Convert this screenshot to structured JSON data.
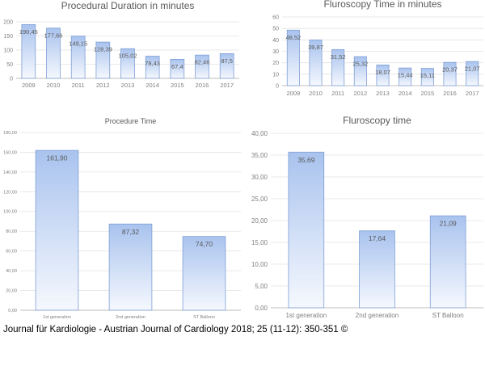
{
  "colors": {
    "bar_top": "#a9c3ee",
    "bar_bottom": "#f5f8fe",
    "bar_stroke": "#7f9fd6",
    "grid": "#e3e3e3",
    "axis": "#bfbfbf",
    "text": "#595959"
  },
  "footer": {
    "citation": "Journal für Kardiologie - Austrian Journal of Cardiology 2018; 25 (11-12):  350-351 ©"
  },
  "chart_data": [
    {
      "type": "bar",
      "title": "Procedural Duration in minutes",
      "categories": [
        "2009",
        "2010",
        "2011",
        "2012",
        "2013",
        "2014",
        "2015",
        "2016",
        "2017"
      ],
      "values": [
        190.45,
        177.66,
        149.15,
        128.39,
        105.02,
        78.43,
        67.4,
        82.46,
        87.5
      ],
      "value_labels": [
        "190,45",
        "177,66",
        "149,15",
        "128,39",
        "105,02",
        "78,43",
        "67,4",
        "82,46",
        "87,5"
      ],
      "yticks": [
        "0",
        "50",
        "100",
        "150",
        "200"
      ],
      "ylim": [
        0,
        200
      ],
      "grid": true
    },
    {
      "type": "bar",
      "title": "Fluroscopy Time in minutes",
      "categories": [
        "2009",
        "2010",
        "2011",
        "2012",
        "2013",
        "2014",
        "2015",
        "2016",
        "2017"
      ],
      "values": [
        48.52,
        39.87,
        31.52,
        25.32,
        18.07,
        15.44,
        15.11,
        20.37,
        21.07
      ],
      "value_labels": [
        "48,52",
        "39,87",
        "31,52",
        "25,32",
        "18,07",
        "15,44",
        "15,11",
        "20,37",
        "21,07"
      ],
      "yticks": [
        "0",
        "10",
        "20",
        "30",
        "40",
        "50",
        "60"
      ],
      "ylim": [
        0,
        60
      ],
      "grid": true
    },
    {
      "type": "bar",
      "title": "Procedure Time",
      "categories": [
        "1st generation",
        "2nd generation",
        "ST Balloon"
      ],
      "values": [
        161.9,
        87.32,
        74.7
      ],
      "value_labels": [
        "161,90",
        "87,32",
        "74,70"
      ],
      "yticks": [
        "0,00",
        "20,00",
        "40,00",
        "60,00",
        "80,00",
        "100,00",
        "120,00",
        "140,00",
        "160,00",
        "180,00"
      ],
      "ylim": [
        0,
        180
      ],
      "grid": true
    },
    {
      "type": "bar",
      "title": "Fluroscopy time",
      "categories": [
        "1st generation",
        "2nd generation",
        "ST Balloon"
      ],
      "values": [
        35.69,
        17.64,
        21.09
      ],
      "value_labels": [
        "35,69",
        "17,64",
        "21,09"
      ],
      "yticks": [
        "0,00",
        "5,00",
        "10,00",
        "15,00",
        "20,00",
        "25,00",
        "30,00",
        "35,00",
        "40,00"
      ],
      "ylim": [
        0,
        40
      ],
      "grid": true
    }
  ]
}
